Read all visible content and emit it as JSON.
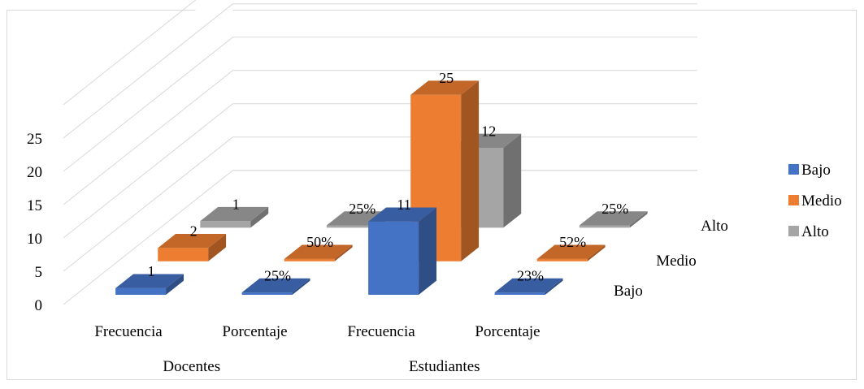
{
  "chart_data": {
    "type": "bar",
    "title": "",
    "xlabel": "",
    "ylabel": "",
    "ylim": [
      0,
      25
    ],
    "yticks": [
      "0",
      "5",
      "10",
      "15",
      "20",
      "25"
    ],
    "grid": true,
    "legend_position": "right",
    "groups": [
      "Docentes",
      "Estudiantes"
    ],
    "categories": [
      "Frecuencia",
      "Porcentaje",
      "Frecuencia",
      "Porcentaje"
    ],
    "depth_labels": [
      "Bajo",
      "Medio",
      "Alto"
    ],
    "series": [
      {
        "name": "Bajo",
        "color": "#4472c4",
        "values": [
          1,
          0.25,
          11,
          0.23
        ],
        "labels": [
          "1",
          "25%",
          "11",
          "23%"
        ]
      },
      {
        "name": "Medio",
        "color": "#ed7d31",
        "values": [
          2,
          0.5,
          25,
          0.52
        ],
        "labels": [
          "2",
          "50%",
          "25",
          "52%"
        ]
      },
      {
        "name": "Alto",
        "color": "#a5a5a5",
        "values": [
          1,
          0.25,
          12,
          0.25
        ],
        "labels": [
          "1",
          "25%",
          "12",
          "25%"
        ]
      }
    ]
  },
  "legend": {
    "items": [
      {
        "label": "Bajo",
        "color": "#4472c4"
      },
      {
        "label": "Medio",
        "color": "#ed7d31"
      },
      {
        "label": "Alto",
        "color": "#a5a5a5"
      }
    ]
  }
}
